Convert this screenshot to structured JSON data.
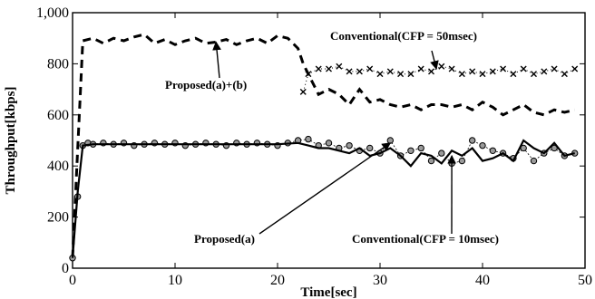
{
  "chart_data": {
    "type": "line",
    "title": "",
    "xlabel": "Time[sec]",
    "ylabel": "Throughput[kbps]",
    "xlim": [
      0,
      50
    ],
    "ylim": [
      0,
      1000
    ],
    "grid": false,
    "xticks": [
      "0",
      "10",
      "20",
      "30",
      "40",
      "50"
    ],
    "yticks": [
      "0",
      "200",
      "400",
      "600",
      "800",
      "1,000"
    ],
    "series": [
      {
        "key": "proposed_ab",
        "style": "dashed",
        "color": "#000000",
        "x": [
          0,
          1,
          2,
          3,
          4,
          5,
          6,
          7,
          8,
          9,
          10,
          11,
          12,
          13,
          14,
          15,
          16,
          17,
          18,
          19,
          20,
          21,
          22,
          22.5,
          23,
          24,
          25,
          26,
          27,
          28,
          29,
          30,
          31,
          32,
          33,
          34,
          35,
          36,
          37,
          38,
          39,
          40,
          41,
          42,
          43,
          44,
          45,
          46,
          47,
          48,
          49
        ],
        "y": [
          40,
          890,
          900,
          880,
          900,
          890,
          905,
          915,
          880,
          895,
          875,
          890,
          900,
          880,
          885,
          895,
          875,
          890,
          900,
          880,
          910,
          900,
          860,
          800,
          760,
          680,
          700,
          680,
          640,
          700,
          650,
          660,
          640,
          630,
          640,
          620,
          640,
          640,
          630,
          640,
          620,
          650,
          630,
          600,
          620,
          640,
          610,
          600,
          620,
          610,
          620
        ]
      },
      {
        "key": "conventional_50",
        "style": "marker-x",
        "color": "#000000",
        "x": [
          22.5,
          23,
          24,
          25,
          26,
          27,
          28,
          29,
          30,
          31,
          32,
          33,
          34,
          35,
          36,
          37,
          38,
          39,
          40,
          41,
          42,
          43,
          44,
          45,
          46,
          47,
          48,
          49
        ],
        "y": [
          690,
          760,
          780,
          780,
          790,
          770,
          770,
          780,
          760,
          770,
          760,
          760,
          780,
          770,
          790,
          780,
          760,
          770,
          760,
          770,
          780,
          760,
          780,
          760,
          770,
          780,
          760,
          780
        ]
      },
      {
        "key": "conventional_10",
        "style": "marker-circle",
        "color": "#000000",
        "x": [
          0,
          0.5,
          1,
          1.5,
          2,
          3,
          4,
          5,
          6,
          7,
          8,
          9,
          10,
          11,
          12,
          13,
          14,
          15,
          16,
          17,
          18,
          19,
          20,
          21,
          22,
          23,
          24,
          25,
          26,
          27,
          28,
          29,
          30,
          31,
          32,
          33,
          34,
          35,
          36,
          37,
          38,
          39,
          40,
          41,
          42,
          43,
          44,
          45,
          46,
          47,
          48,
          49
        ],
        "y": [
          40,
          280,
          480,
          490,
          485,
          490,
          485,
          490,
          480,
          485,
          490,
          485,
          490,
          480,
          485,
          490,
          485,
          480,
          490,
          485,
          490,
          485,
          480,
          490,
          500,
          505,
          480,
          490,
          470,
          480,
          460,
          470,
          450,
          500,
          440,
          460,
          470,
          420,
          450,
          410,
          420,
          500,
          480,
          460,
          450,
          430,
          470,
          420,
          450,
          470,
          440,
          450
        ]
      },
      {
        "key": "proposed_a",
        "style": "solid",
        "color": "#000000",
        "x": [
          0,
          0.5,
          1,
          2,
          5,
          10,
          15,
          20,
          22,
          23,
          24,
          25,
          26,
          27,
          28,
          29,
          30,
          31,
          32,
          33,
          34,
          35,
          36,
          37,
          38,
          39,
          40,
          41,
          42,
          43,
          44,
          45,
          46,
          47,
          48,
          49
        ],
        "y": [
          40,
          300,
          480,
          485,
          485,
          485,
          485,
          485,
          490,
          480,
          470,
          470,
          460,
          450,
          470,
          440,
          450,
          470,
          440,
          400,
          450,
          440,
          410,
          460,
          440,
          470,
          420,
          430,
          450,
          420,
          500,
          470,
          450,
          490,
          440,
          450
        ]
      }
    ],
    "annotations": [
      {
        "text": "Proposed(a)+(b)",
        "at": [
          14,
          885
        ]
      },
      {
        "text": "Conventional(CFP = 50msec)",
        "at": [
          35.5,
          780
        ]
      },
      {
        "text": "Proposed(a)",
        "at": [
          31,
          490
        ]
      },
      {
        "text": "Conventional(CFP = 10msec)",
        "at": [
          37,
          440
        ]
      }
    ]
  }
}
